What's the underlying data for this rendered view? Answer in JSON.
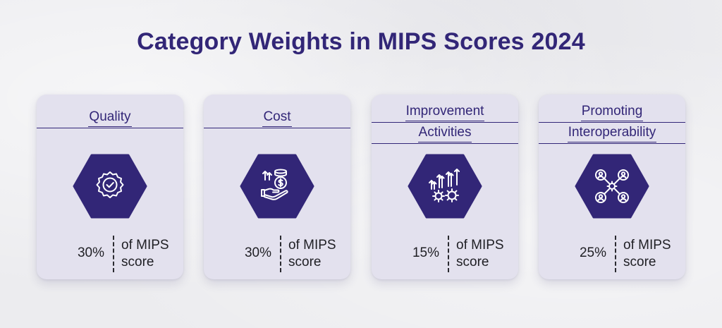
{
  "title": "Category Weights in MIPS Scores 2024",
  "colors": {
    "accent": "#322677",
    "card": "#e3e1ee",
    "background": "#ececef"
  },
  "cards": [
    {
      "title_lines": [
        "Quality"
      ],
      "icon": "quality-badge-icon",
      "percent": "30%",
      "desc_lines": [
        "of MIPS",
        "score"
      ]
    },
    {
      "title_lines": [
        "Cost"
      ],
      "icon": "cost-coins-hand-icon",
      "percent": "30%",
      "desc_lines": [
        "of MIPS",
        "score"
      ]
    },
    {
      "title_lines": [
        "Improvement",
        "Activities"
      ],
      "icon": "improvement-arrows-gears-icon",
      "percent": "15%",
      "desc_lines": [
        "of MIPS",
        "score"
      ]
    },
    {
      "title_lines": [
        "Promoting",
        "Interoperability"
      ],
      "icon": "interoperability-network-icon",
      "percent": "25%",
      "desc_lines": [
        "of MIPS",
        "score"
      ]
    }
  ]
}
